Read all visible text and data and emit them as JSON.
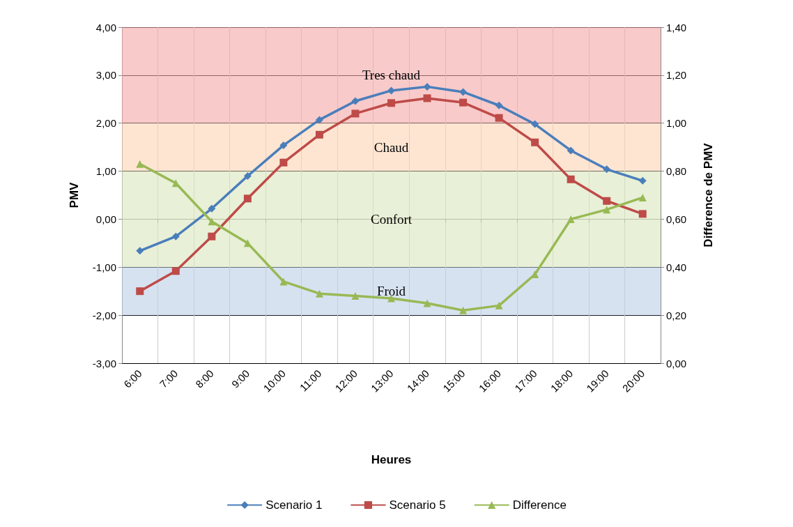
{
  "chart_data": {
    "type": "line",
    "xlabel": "Heures",
    "ylabel": "PMV",
    "y2label": "Difference de PMV",
    "categories": [
      "6:00",
      "7:00",
      "8:00",
      "9:00",
      "10:00",
      "11:00",
      "12:00",
      "13:00",
      "14:00",
      "15:00",
      "16:00",
      "17:00",
      "18:00",
      "19:00",
      "20:00"
    ],
    "series": [
      {
        "name": "Scenario 1",
        "color": "#4a7ebb",
        "marker": "diamond",
        "values": [
          -0.66,
          -0.36,
          0.22,
          0.9,
          1.54,
          2.07,
          2.46,
          2.68,
          2.76,
          2.65,
          2.37,
          1.98,
          1.43,
          1.04,
          0.8
        ]
      },
      {
        "name": "Scenario 5",
        "color": "#be4b48",
        "marker": "square",
        "values": [
          -1.5,
          -1.08,
          -0.36,
          0.43,
          1.18,
          1.76,
          2.2,
          2.42,
          2.52,
          2.43,
          2.11,
          1.6,
          0.83,
          0.38,
          0.11
        ]
      },
      {
        "name": "Difference",
        "color": "#98b954",
        "marker": "triangle",
        "axis": "y2",
        "values": [
          0.83,
          0.75,
          0.59,
          0.5,
          0.34,
          0.29,
          0.28,
          0.27,
          0.25,
          0.22,
          0.24,
          0.37,
          0.6,
          0.64,
          0.69
        ]
      }
    ],
    "ylim": [
      -3,
      4
    ],
    "yticks": [
      {
        "value": -3,
        "label": "-3,00"
      },
      {
        "value": -2,
        "label": "-2,00"
      },
      {
        "value": -1,
        "label": "-1,00"
      },
      {
        "value": 0,
        "label": "0,00"
      },
      {
        "value": 1,
        "label": "1,00"
      },
      {
        "value": 2,
        "label": "2,00"
      },
      {
        "value": 3,
        "label": "3,00"
      },
      {
        "value": 4,
        "label": "4,00"
      }
    ],
    "y2lim": [
      0,
      1.4
    ],
    "y2ticks": [
      {
        "value": 0,
        "label": "0,00"
      },
      {
        "value": 0.2,
        "label": "0,20"
      },
      {
        "value": 0.4,
        "label": "0,40"
      },
      {
        "value": 0.6,
        "label": "0,60"
      },
      {
        "value": 0.8,
        "label": "0,80"
      },
      {
        "value": 1,
        "label": "1,00"
      },
      {
        "value": 1.2,
        "label": "1,20"
      },
      {
        "value": 1.4,
        "label": "1,40"
      }
    ],
    "bands": [
      {
        "axis": "y",
        "from": 2,
        "to": 4,
        "label": "Tres chaud",
        "color": "#f4a6a6"
      },
      {
        "axis": "y",
        "from": 1,
        "to": 2,
        "label": "Chaud",
        "color": "#fbd3b4"
      },
      {
        "axis": "y",
        "from": -1,
        "to": 1,
        "label": "Confort",
        "color": "#d8e6bd"
      },
      {
        "axis": "y",
        "from": -2,
        "to": -1,
        "label": "Froid",
        "color": "#bccfe8"
      }
    ],
    "grid": true,
    "legend": "bottom",
    "line_style": "solid"
  }
}
